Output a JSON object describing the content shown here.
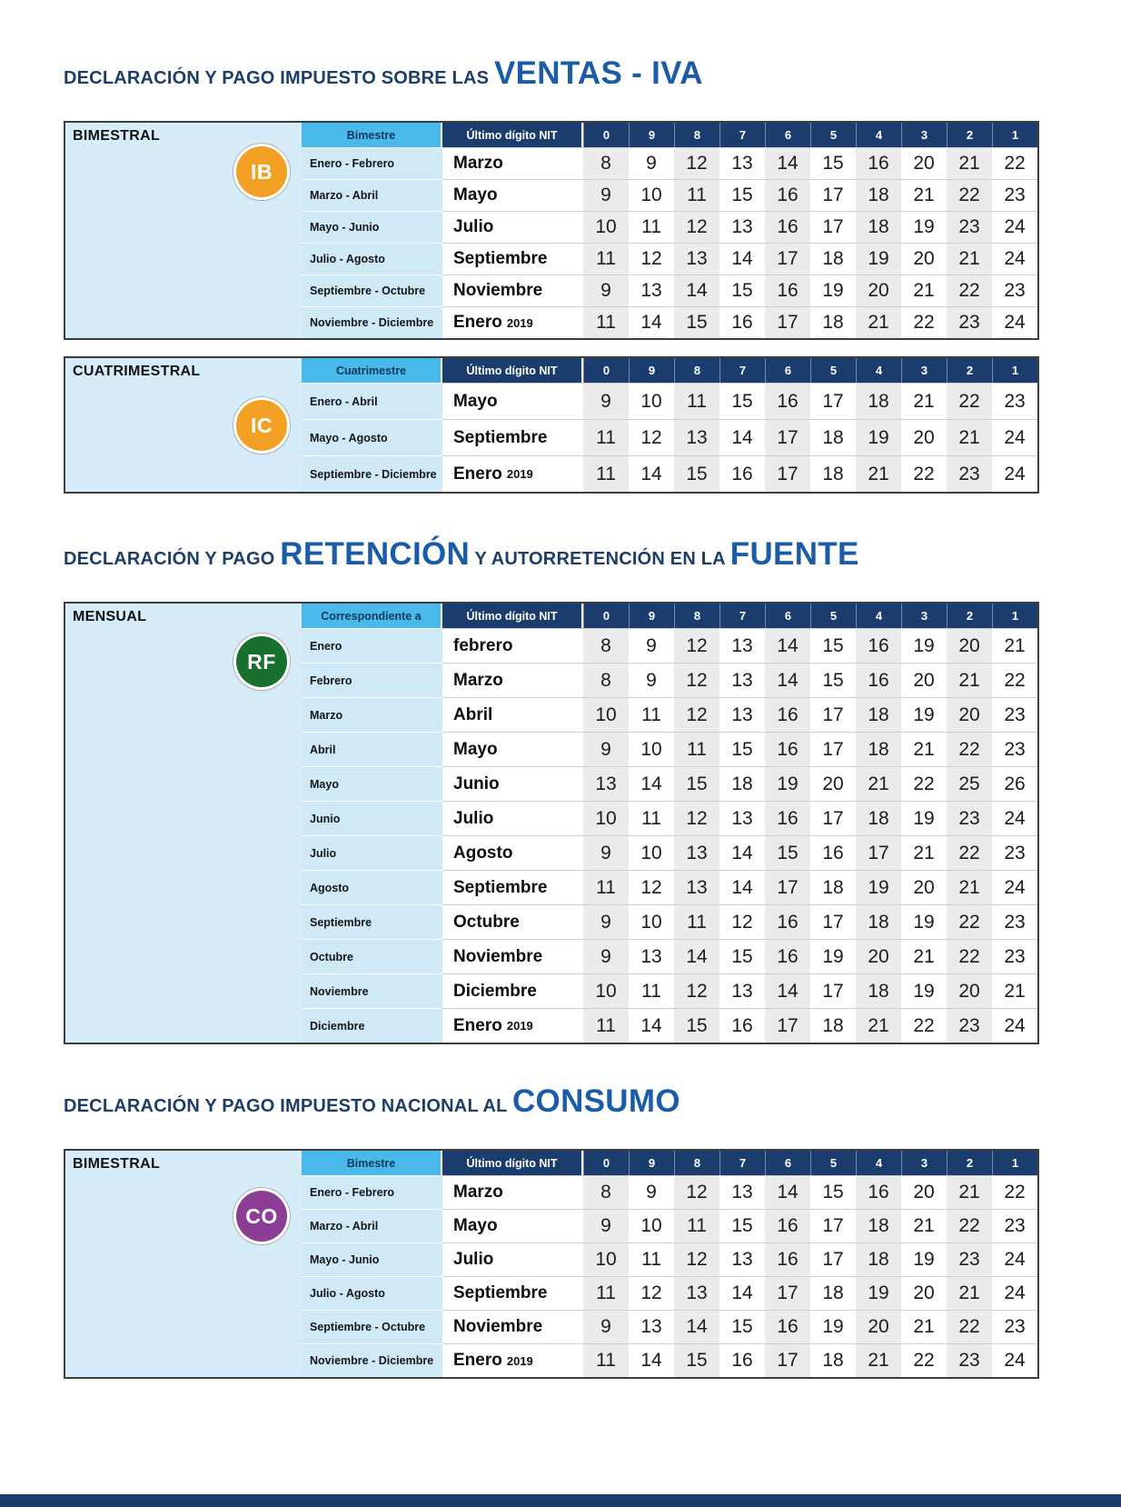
{
  "colors": {
    "navy_header": "#1b3d6e",
    "cyan_header": "#49b9ea",
    "light_blue_panel": "#d6edf9",
    "period_column": "#cfe9f7",
    "column_stripe": "#ebebeb",
    "title_accent": "#1a5ca8"
  },
  "nit": {
    "label": "Último dígito NIT",
    "digits": [
      "0",
      "9",
      "8",
      "7",
      "6",
      "5",
      "4",
      "3",
      "2",
      "1"
    ]
  },
  "titles": {
    "iva": [
      {
        "text": "DECLARACIÓN Y PAGO IMPUESTO SOBRE LAS ",
        "big": false
      },
      {
        "text": "VENTAS - IVA",
        "big": true
      }
    ],
    "fuente": [
      {
        "text": "DECLARACIÓN Y PAGO ",
        "big": false
      },
      {
        "text": "RETENCIÓN",
        "big": true
      },
      {
        "text": " Y AUTORRETENCIÓN EN LA ",
        "big": false
      },
      {
        "text": "FUENTE",
        "big": true
      }
    ],
    "consumo": [
      {
        "text": "DECLARACIÓN Y PAGO IMPUESTO NACIONAL AL ",
        "big": false
      },
      {
        "text": "CONSUMO",
        "big": true
      }
    ]
  },
  "tables": {
    "iva_bimestral": {
      "frequency_label": "BIMESTRAL",
      "badge": {
        "text": "IB",
        "color": "#F2A124"
      },
      "period_header": "Bimestre",
      "rows": [
        {
          "period": "Enero - Febrero",
          "month": "Marzo",
          "year": "",
          "days": [
            "8",
            "9",
            "12",
            "13",
            "14",
            "15",
            "16",
            "20",
            "21",
            "22"
          ]
        },
        {
          "period": "Marzo - Abril",
          "month": "Mayo",
          "year": "",
          "days": [
            "9",
            "10",
            "11",
            "15",
            "16",
            "17",
            "18",
            "21",
            "22",
            "23"
          ]
        },
        {
          "period": "Mayo - Junio",
          "month": "Julio",
          "year": "",
          "days": [
            "10",
            "11",
            "12",
            "13",
            "16",
            "17",
            "18",
            "19",
            "23",
            "24"
          ]
        },
        {
          "period": "Julio - Agosto",
          "month": "Septiembre",
          "year": "",
          "days": [
            "11",
            "12",
            "13",
            "14",
            "17",
            "18",
            "19",
            "20",
            "21",
            "24"
          ]
        },
        {
          "period": "Septiembre - Octubre",
          "month": "Noviembre",
          "year": "",
          "days": [
            "9",
            "13",
            "14",
            "15",
            "16",
            "19",
            "20",
            "21",
            "22",
            "23"
          ]
        },
        {
          "period": "Noviembre - Diciembre",
          "month": "Enero",
          "year": "2019",
          "days": [
            "11",
            "14",
            "15",
            "16",
            "17",
            "18",
            "21",
            "22",
            "23",
            "24"
          ]
        }
      ]
    },
    "iva_cuatrimestral": {
      "frequency_label": "CUATRIMESTRAL",
      "badge": {
        "text": "IC",
        "color": "#F2A124"
      },
      "period_header": "Cuatrimestre",
      "rows": [
        {
          "period": "Enero - Abril",
          "month": "Mayo",
          "year": "",
          "days": [
            "9",
            "10",
            "11",
            "15",
            "16",
            "17",
            "18",
            "21",
            "22",
            "23"
          ]
        },
        {
          "period": "Mayo - Agosto",
          "month": "Septiembre",
          "year": "",
          "days": [
            "11",
            "12",
            "13",
            "14",
            "17",
            "18",
            "19",
            "20",
            "21",
            "24"
          ]
        },
        {
          "period": "Septiembre - Diciembre",
          "month": "Enero",
          "year": "2019",
          "days": [
            "11",
            "14",
            "15",
            "16",
            "17",
            "18",
            "21",
            "22",
            "23",
            "24"
          ]
        }
      ]
    },
    "fuente_mensual": {
      "frequency_label": "MENSUAL",
      "badge": {
        "text": "RF",
        "color": "#17702E"
      },
      "period_header": "Correspondiente a",
      "rows": [
        {
          "period": "Enero",
          "month": "febrero",
          "year": "",
          "days": [
            "8",
            "9",
            "12",
            "13",
            "14",
            "15",
            "16",
            "19",
            "20",
            "21"
          ]
        },
        {
          "period": "Febrero",
          "month": "Marzo",
          "year": "",
          "days": [
            "8",
            "9",
            "12",
            "13",
            "14",
            "15",
            "16",
            "20",
            "21",
            "22"
          ]
        },
        {
          "period": "Marzo",
          "month": "Abril",
          "year": "",
          "days": [
            "10",
            "11",
            "12",
            "13",
            "16",
            "17",
            "18",
            "19",
            "20",
            "23"
          ]
        },
        {
          "period": "Abril",
          "month": "Mayo",
          "year": "",
          "days": [
            "9",
            "10",
            "11",
            "15",
            "16",
            "17",
            "18",
            "21",
            "22",
            "23"
          ]
        },
        {
          "period": "Mayo",
          "month": "Junio",
          "year": "",
          "days": [
            "13",
            "14",
            "15",
            "18",
            "19",
            "20",
            "21",
            "22",
            "25",
            "26"
          ]
        },
        {
          "period": "Junio",
          "month": "Julio",
          "year": "",
          "days": [
            "10",
            "11",
            "12",
            "13",
            "16",
            "17",
            "18",
            "19",
            "23",
            "24"
          ]
        },
        {
          "period": "Julio",
          "month": "Agosto",
          "year": "",
          "days": [
            "9",
            "10",
            "13",
            "14",
            "15",
            "16",
            "17",
            "21",
            "22",
            "23"
          ]
        },
        {
          "period": "Agosto",
          "month": "Septiembre",
          "year": "",
          "days": [
            "11",
            "12",
            "13",
            "14",
            "17",
            "18",
            "19",
            "20",
            "21",
            "24"
          ]
        },
        {
          "period": "Septiembre",
          "month": "Octubre",
          "year": "",
          "days": [
            "9",
            "10",
            "11",
            "12",
            "16",
            "17",
            "18",
            "19",
            "22",
            "23"
          ]
        },
        {
          "period": "Octubre",
          "month": "Noviembre",
          "year": "",
          "days": [
            "9",
            "13",
            "14",
            "15",
            "16",
            "19",
            "20",
            "21",
            "22",
            "23"
          ]
        },
        {
          "period": "Noviembre",
          "month": "Diciembre",
          "year": "",
          "days": [
            "10",
            "11",
            "12",
            "13",
            "14",
            "17",
            "18",
            "19",
            "20",
            "21"
          ]
        },
        {
          "period": "Diciembre",
          "month": "Enero",
          "year": "2019",
          "days": [
            "11",
            "14",
            "15",
            "16",
            "17",
            "18",
            "21",
            "22",
            "23",
            "24"
          ]
        }
      ]
    },
    "consumo_bimestral": {
      "frequency_label": "BIMESTRAL",
      "badge": {
        "text": "CO",
        "color": "#8B3E94"
      },
      "period_header": "Bimestre",
      "rows": [
        {
          "period": "Enero - Febrero",
          "month": "Marzo",
          "year": "",
          "days": [
            "8",
            "9",
            "12",
            "13",
            "14",
            "15",
            "16",
            "20",
            "21",
            "22"
          ]
        },
        {
          "period": "Marzo - Abril",
          "month": "Mayo",
          "year": "",
          "days": [
            "9",
            "10",
            "11",
            "15",
            "16",
            "17",
            "18",
            "21",
            "22",
            "23"
          ]
        },
        {
          "period": "Mayo - Junio",
          "month": "Julio",
          "year": "",
          "days": [
            "10",
            "11",
            "12",
            "13",
            "16",
            "17",
            "18",
            "19",
            "23",
            "24"
          ]
        },
        {
          "period": "Julio - Agosto",
          "month": "Septiembre",
          "year": "",
          "days": [
            "11",
            "12",
            "13",
            "14",
            "17",
            "18",
            "19",
            "20",
            "21",
            "24"
          ]
        },
        {
          "period": "Septiembre - Octubre",
          "month": "Noviembre",
          "year": "",
          "days": [
            "9",
            "13",
            "14",
            "15",
            "16",
            "19",
            "20",
            "21",
            "22",
            "23"
          ]
        },
        {
          "period": "Noviembre - Diciembre",
          "month": "Enero",
          "year": "2019",
          "days": [
            "11",
            "14",
            "15",
            "16",
            "17",
            "18",
            "21",
            "22",
            "23",
            "24"
          ]
        }
      ]
    }
  }
}
